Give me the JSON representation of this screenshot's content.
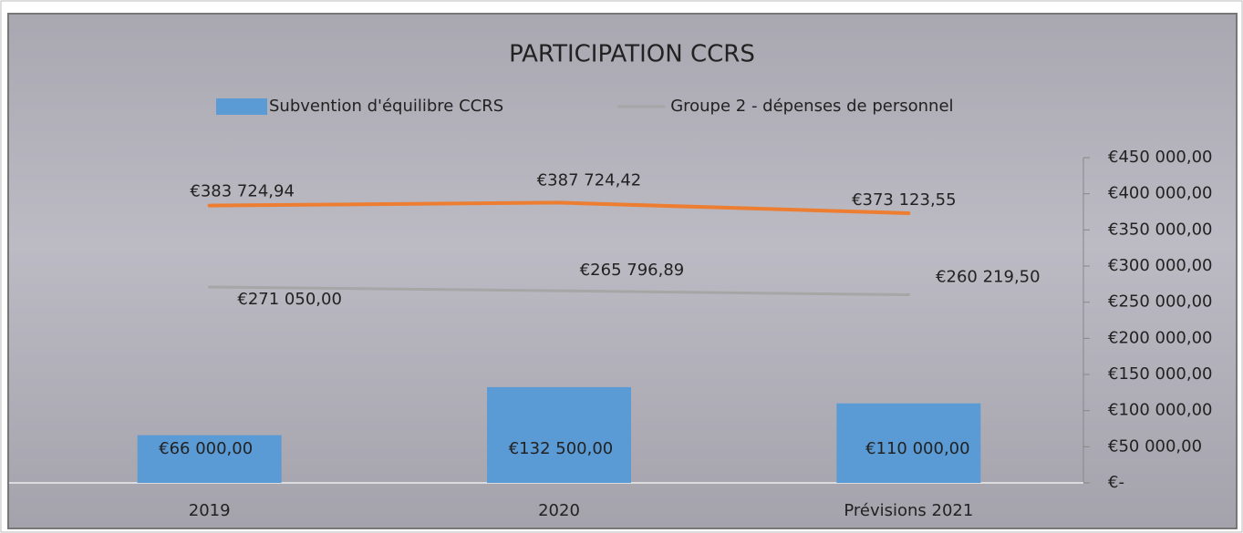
{
  "chart_data": {
    "type": "combo",
    "title": "PARTICIPATION CCRS",
    "categories": [
      "2019",
      "2020",
      "Prévisions 2021"
    ],
    "series": [
      {
        "name": "Subvention d'équilibre CCRS",
        "type": "bar",
        "color": "#5b9bd5",
        "values": [
          66000,
          132500,
          110000
        ],
        "value_labels": [
          "€66 000,00",
          "€132 500,00",
          "€110 000,00"
        ]
      },
      {
        "name": "Groupe 2 - dépenses de personnel",
        "type": "line",
        "color": "#a6a6a6",
        "values": [
          271050,
          265796.89,
          260219.5
        ],
        "value_labels": [
          "€271 050,00",
          "€265 796,89",
          "€260 219,50"
        ]
      },
      {
        "type": "line",
        "color": "#ed7d31",
        "values": [
          383724.94,
          387724.42,
          373123.55
        ],
        "value_labels": [
          "€383 724,94",
          "€387 724,42",
          "€373 123,55"
        ]
      }
    ],
    "ylim": [
      0,
      450000
    ],
    "yticks": [
      {
        "value": 0,
        "label": "€-"
      },
      {
        "value": 50000,
        "label": "€50 000,00"
      },
      {
        "value": 100000,
        "label": "€100 000,00"
      },
      {
        "value": 150000,
        "label": "€150 000,00"
      },
      {
        "value": 200000,
        "label": "€200 000,00"
      },
      {
        "value": 250000,
        "label": "€250 000,00"
      },
      {
        "value": 300000,
        "label": "€300 000,00"
      },
      {
        "value": 350000,
        "label": "€350 000,00"
      },
      {
        "value": 400000,
        "label": "€400 000,00"
      },
      {
        "value": 450000,
        "label": "€450 000,00"
      }
    ],
    "legend": "top"
  }
}
